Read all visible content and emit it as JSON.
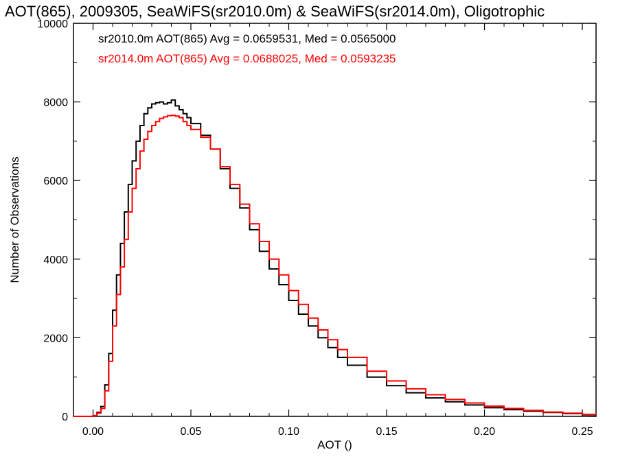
{
  "chart_data": {
    "type": "line",
    "title": "AOT(865), 2009305, SeaWiFS(sr2010.0m) & SeaWiFS(sr2014.0m), Oligotrophic",
    "xlabel": "AOT ()",
    "ylabel": "Number of Observations",
    "xlim": [
      -0.01,
      0.257
    ],
    "ylim": [
      0,
      10000
    ],
    "xticks": [
      0.0,
      0.05,
      0.1,
      0.15,
      0.2,
      0.25
    ],
    "xtick_labels": [
      "0.00",
      "0.05",
      "0.10",
      "0.15",
      "0.20",
      "0.25"
    ],
    "yticks": [
      0,
      2000,
      4000,
      6000,
      8000,
      10000
    ],
    "ytick_labels": [
      "0",
      "2000",
      "4000",
      "6000",
      "8000",
      "10000"
    ],
    "grid": false,
    "annotations": [
      {
        "text": "sr2010.0m AOT(865) Avg = 0.0659531, Med = 0.0565000",
        "color": "#000000"
      },
      {
        "text": "sr2014.0m AOT(865) Avg = 0.0688025, Med = 0.0593235",
        "color": "#ff0000"
      }
    ],
    "series": [
      {
        "color": "#000000",
        "style": "step",
        "x": [
          -0.01,
          -0.005,
          -0.002,
          0.0,
          0.002,
          0.004,
          0.006,
          0.008,
          0.01,
          0.012,
          0.014,
          0.016,
          0.018,
          0.02,
          0.022,
          0.024,
          0.026,
          0.028,
          0.03,
          0.032,
          0.034,
          0.036,
          0.038,
          0.04,
          0.042,
          0.044,
          0.046,
          0.048,
          0.05,
          0.055,
          0.06,
          0.065,
          0.07,
          0.075,
          0.08,
          0.085,
          0.09,
          0.095,
          0.1,
          0.105,
          0.11,
          0.115,
          0.12,
          0.125,
          0.13,
          0.14,
          0.15,
          0.16,
          0.17,
          0.18,
          0.19,
          0.2,
          0.21,
          0.22,
          0.23,
          0.24,
          0.25,
          0.257
        ],
        "y": [
          0,
          0,
          0,
          20,
          100,
          250,
          800,
          1600,
          2700,
          3600,
          4400,
          5200,
          5900,
          6500,
          7000,
          7400,
          7700,
          7850,
          7950,
          7980,
          8000,
          7950,
          7980,
          8050,
          7900,
          7800,
          7700,
          7600,
          7450,
          7150,
          6800,
          6300,
          5800,
          5300,
          4750,
          4200,
          3750,
          3350,
          2950,
          2600,
          2300,
          2000,
          1750,
          1500,
          1300,
          1000,
          780,
          600,
          470,
          370,
          290,
          220,
          170,
          130,
          100,
          70,
          40,
          30
        ]
      },
      {
        "color": "#ff0000",
        "style": "step",
        "x": [
          -0.01,
          -0.005,
          -0.002,
          0.0,
          0.002,
          0.004,
          0.006,
          0.008,
          0.01,
          0.012,
          0.014,
          0.016,
          0.018,
          0.02,
          0.022,
          0.024,
          0.026,
          0.028,
          0.03,
          0.032,
          0.034,
          0.036,
          0.038,
          0.04,
          0.042,
          0.044,
          0.046,
          0.048,
          0.05,
          0.055,
          0.06,
          0.065,
          0.07,
          0.075,
          0.08,
          0.085,
          0.09,
          0.095,
          0.1,
          0.105,
          0.11,
          0.115,
          0.12,
          0.125,
          0.13,
          0.14,
          0.15,
          0.16,
          0.17,
          0.18,
          0.19,
          0.2,
          0.21,
          0.22,
          0.23,
          0.24,
          0.25,
          0.257
        ],
        "y": [
          0,
          0,
          0,
          15,
          80,
          200,
          650,
          1400,
          2300,
          3100,
          3800,
          4500,
          5200,
          5800,
          6300,
          6750,
          7050,
          7250,
          7400,
          7500,
          7580,
          7620,
          7650,
          7660,
          7640,
          7600,
          7500,
          7400,
          7300,
          7100,
          6800,
          6350,
          5900,
          5400,
          4900,
          4450,
          4000,
          3600,
          3200,
          2850,
          2500,
          2200,
          1950,
          1700,
          1500,
          1150,
          900,
          700,
          550,
          430,
          340,
          260,
          200,
          150,
          110,
          80,
          50,
          35
        ]
      }
    ]
  }
}
